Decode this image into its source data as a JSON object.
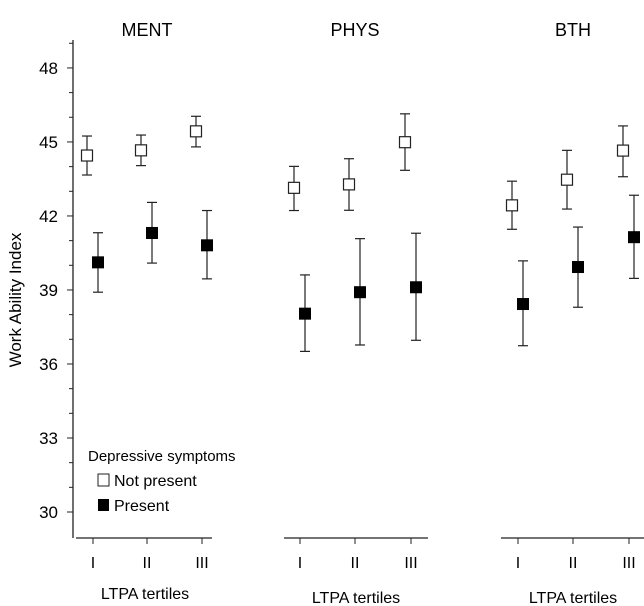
{
  "chart_data": {
    "type": "scatter",
    "subtype": "point-with-error-bars",
    "ylabel": "Work Ability Index",
    "ylim": [
      29,
      49
    ],
    "yticks": [
      30,
      33,
      36,
      39,
      42,
      45,
      48
    ],
    "categories": [
      "I",
      "II",
      "III"
    ],
    "xlabel": "LTPA tertiles",
    "legend": {
      "title": "Depressive symptoms",
      "placement": "bottom-left",
      "entries": [
        "Not present",
        "Present"
      ]
    },
    "panels": [
      {
        "title": "MENT",
        "series": [
          {
            "name": "Not present",
            "values": [
              44.45,
              44.66,
              45.43
            ],
            "lower": [
              43.66,
              44.04,
              44.8
            ],
            "upper": [
              45.24,
              45.28,
              46.04
            ]
          },
          {
            "name": "Present",
            "values": [
              40.12,
              41.31,
              40.81
            ],
            "lower": [
              38.91,
              40.09,
              39.45
            ],
            "upper": [
              41.32,
              42.55,
              42.22
            ]
          }
        ]
      },
      {
        "title": "PHYS",
        "series": [
          {
            "name": "Not present",
            "values": [
              43.14,
              43.28,
              44.99
            ],
            "lower": [
              42.22,
              42.23,
              43.85
            ],
            "upper": [
              44.01,
              44.32,
              46.14
            ]
          },
          {
            "name": "Present",
            "values": [
              38.04,
              38.91,
              39.11
            ],
            "lower": [
              36.51,
              36.77,
              36.96
            ],
            "upper": [
              39.61,
              41.08,
              41.3
            ]
          }
        ]
      },
      {
        "title": "BTH",
        "series": [
          {
            "name": "Not present",
            "values": [
              42.43,
              43.47,
              44.65
            ],
            "lower": [
              41.46,
              42.28,
              43.59
            ],
            "upper": [
              43.41,
              44.66,
              45.65
            ]
          },
          {
            "name": "Present",
            "values": [
              38.43,
              39.93,
              41.14
            ],
            "lower": [
              36.74,
              38.3,
              39.47
            ],
            "upper": [
              40.18,
              41.55,
              42.84
            ]
          }
        ]
      }
    ],
    "colors": {
      "not_present_fill": "#ffffff",
      "present_fill": "#000000",
      "stroke": "#222222"
    }
  }
}
